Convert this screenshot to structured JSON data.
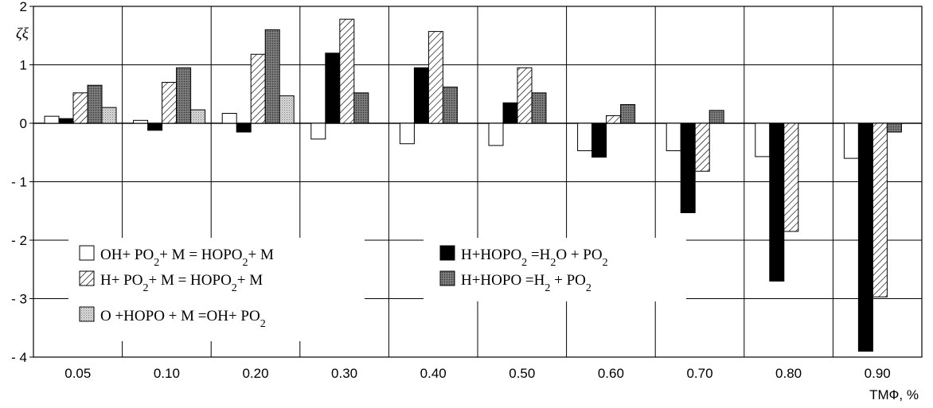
{
  "chart_data": {
    "type": "bar",
    "xlabel": "ТМФ, %",
    "ylabel": "ζξ",
    "ylim": [
      -4,
      2
    ],
    "yticks": [
      2,
      1,
      0,
      -1,
      -2,
      -3,
      -4
    ],
    "ytick_labels": [
      "2",
      "1",
      "0",
      "- 1",
      "- 2",
      "- 3",
      "- 4"
    ],
    "grid": true,
    "legend_position": "lower-left",
    "categories": [
      "0.05",
      "0.10",
      "0.20",
      "0.30",
      "0.40",
      "0.50",
      "0.60",
      "0.70",
      "0.80",
      "0.90"
    ],
    "series": [
      {
        "name": "OH + PO2 + M = HOPO2 + M",
        "legend_parts": [
          "OH+ PO",
          "2",
          "+ M = HOPO",
          "2",
          "+ M"
        ],
        "pattern": "white",
        "values": [
          0.12,
          0.05,
          0.17,
          -0.27,
          -0.35,
          -0.38,
          -0.47,
          -0.47,
          -0.57,
          -0.6
        ]
      },
      {
        "name": "H + HOPO2 = H2O + PO2",
        "legend_parts": [
          "H+HOPO",
          "2",
          " =H",
          "2",
          "O + PO",
          "2"
        ],
        "pattern": "black",
        "values": [
          0.08,
          -0.12,
          -0.15,
          1.2,
          0.95,
          0.35,
          -0.58,
          -1.53,
          -2.7,
          -3.9
        ]
      },
      {
        "name": "H + PO2 + M = HOPO2 + M",
        "legend_parts": [
          "H+ PO",
          "2",
          "+ M = HOPO",
          "2",
          "+ M"
        ],
        "pattern": "hatch",
        "values": [
          0.52,
          0.7,
          1.18,
          1.78,
          1.57,
          0.95,
          0.13,
          -0.82,
          -1.85,
          -2.97
        ]
      },
      {
        "name": "H + HOPO = H2 + PO2",
        "legend_parts": [
          "H+HOPO =H",
          "2",
          " + PO",
          "2"
        ],
        "pattern": "dark",
        "values": [
          0.65,
          0.95,
          1.6,
          0.52,
          0.62,
          0.52,
          0.32,
          0.22,
          0.0,
          -0.15
        ]
      },
      {
        "name": "O + HOPO + M = OH + PO2",
        "legend_parts": [
          "O +HOPO  + M =OH+ PO",
          "2"
        ],
        "pattern": "dots",
        "values": [
          0.27,
          0.23,
          0.47,
          0.0,
          0.0,
          0.0,
          0.0,
          0.0,
          0.0,
          0.0
        ]
      }
    ]
  }
}
